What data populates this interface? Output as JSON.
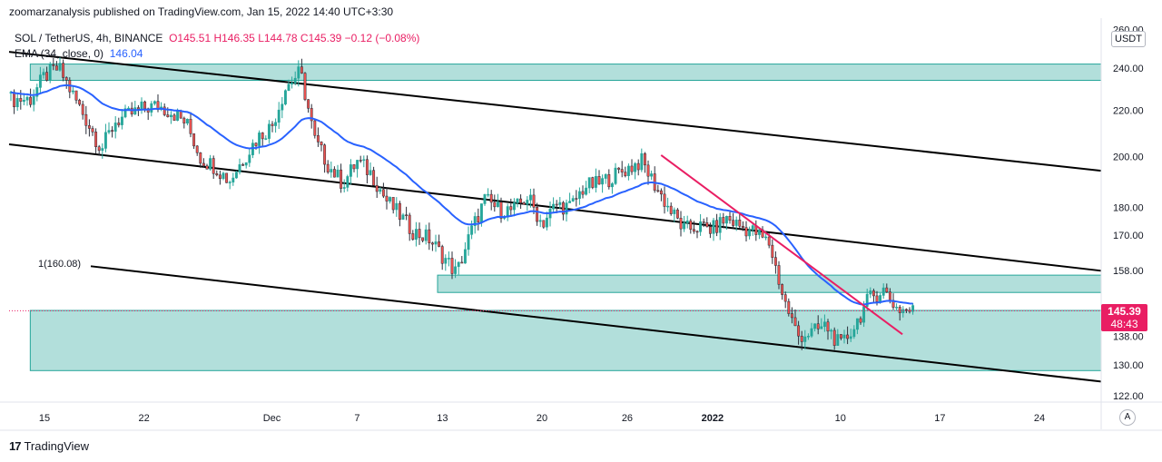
{
  "header": {
    "published": "zoomarzanalysis published on TradingView.com, Jan 15, 2022 14:40 UTC+3:30"
  },
  "legend": {
    "symbol": "SOL / TetherUS, 4h, BINANCE",
    "open": "O145.51",
    "high": "H146.35",
    "low": "L144.78",
    "close": "C145.39",
    "change": "−0.12 (−0.08%)",
    "ema_label": "EMA (34, close, 0)",
    "ema_value": "146.04"
  },
  "price_axis": {
    "currency": "USDT",
    "last_price": "145.39",
    "countdown": "48:43",
    "auto_label": "A"
  },
  "annotations": {
    "fib_label": "1(160.08)"
  },
  "footer": {
    "brand": "TradingView",
    "brand_logo": "17"
  },
  "colors": {
    "up": "#26a69a",
    "down": "#ef5350",
    "candle_body": "#2a2e39",
    "ema": "#2962ff",
    "zone_fill": "#b2dfdb",
    "zone_border": "#26a69a",
    "trendline_pink": "#e91e63",
    "channel": "#000000"
  },
  "chart_data": {
    "type": "candlestick",
    "title": "SOL / TetherUS, 4h, BINANCE",
    "ylim": [
      118,
      262
    ],
    "y_scale": "log",
    "y_ticks": [
      "260.00",
      "240.00",
      "220.00",
      "200.00",
      "180.00",
      "170.00",
      "158.00",
      "138.00",
      "130.00",
      "122.00"
    ],
    "x_ticks": [
      "15",
      "22",
      "Dec",
      "7",
      "13",
      "20",
      "26",
      "2022",
      "10",
      "17",
      "24"
    ],
    "last_price": 145.39,
    "ema_period": 34,
    "ema_last": 146.04,
    "close_path": [
      [
        "2021-11-14",
        225
      ],
      [
        "2021-11-15",
        236
      ],
      [
        "2021-11-16",
        240
      ],
      [
        "2021-11-17",
        227
      ],
      [
        "2021-11-18",
        215
      ],
      [
        "2021-11-19",
        203
      ],
      [
        "2021-11-20",
        215
      ],
      [
        "2021-11-21",
        218
      ],
      [
        "2021-11-22",
        221
      ],
      [
        "2021-11-23",
        222
      ],
      [
        "2021-11-24",
        219
      ],
      [
        "2021-11-25",
        214
      ],
      [
        "2021-11-26",
        199
      ],
      [
        "2021-11-27",
        196
      ],
      [
        "2021-11-28",
        190
      ],
      [
        "2021-11-29",
        199
      ],
      [
        "2021-11-30",
        208
      ],
      [
        "2021-12-01",
        213
      ],
      [
        "2021-12-02",
        231
      ],
      [
        "2021-12-03",
        238
      ],
      [
        "2021-12-04",
        207
      ],
      [
        "2021-12-05",
        196
      ],
      [
        "2021-12-06",
        189
      ],
      [
        "2021-12-07",
        198
      ],
      [
        "2021-12-08",
        193
      ],
      [
        "2021-12-09",
        183
      ],
      [
        "2021-12-10",
        177
      ],
      [
        "2021-12-11",
        171
      ],
      [
        "2021-12-12",
        169
      ],
      [
        "2021-12-13",
        163
      ],
      [
        "2021-12-14",
        157
      ],
      [
        "2021-12-15",
        171
      ],
      [
        "2021-12-16",
        183
      ],
      [
        "2021-12-17",
        179
      ],
      [
        "2021-12-18",
        179
      ],
      [
        "2021-12-19",
        184
      ],
      [
        "2021-12-20",
        174
      ],
      [
        "2021-12-21",
        181
      ],
      [
        "2021-12-22",
        180
      ],
      [
        "2021-12-23",
        188
      ],
      [
        "2021-12-24",
        189
      ],
      [
        "2021-12-25",
        192
      ],
      [
        "2021-12-26",
        195
      ],
      [
        "2021-12-27",
        198
      ],
      [
        "2021-12-28",
        188
      ],
      [
        "2021-12-29",
        179
      ],
      [
        "2021-12-30",
        172
      ],
      [
        "2021-12-31",
        173
      ],
      [
        "2022-01-01",
        172
      ],
      [
        "2022-01-02",
        176
      ],
      [
        "2022-01-03",
        173
      ],
      [
        "2022-01-04",
        171
      ],
      [
        "2022-01-05",
        167
      ],
      [
        "2022-01-06",
        149
      ],
      [
        "2022-01-07",
        138
      ],
      [
        "2022-01-08",
        139
      ],
      [
        "2022-01-09",
        141
      ],
      [
        "2022-01-10",
        135
      ],
      [
        "2022-01-11",
        141
      ],
      [
        "2022-01-12",
        149
      ],
      [
        "2022-01-13",
        152
      ],
      [
        "2022-01-14",
        146
      ],
      [
        "2022-01-15",
        145.39
      ]
    ],
    "zones": [
      {
        "from": "2021-11-14",
        "to": "2022-01-31",
        "low": 234,
        "high": 242
      },
      {
        "from": "2021-12-13",
        "to": "2022-01-31",
        "low": 151,
        "high": 156.5
      },
      {
        "from": "2021-11-14",
        "to": "2022-01-31",
        "low": 128.5,
        "high": 145.5
      }
    ],
    "channel_lines": [
      {
        "from": [
          "2021-11-14",
          247
        ],
        "to": [
          "2022-01-31",
          192.5
        ]
      },
      {
        "from": [
          "2021-11-14",
          204
        ],
        "to": [
          "2022-01-31",
          156.5
        ]
      },
      {
        "from": [
          "2021-11-17",
          160.08
        ],
        "to": [
          "2022-01-31",
          124.5
        ]
      }
    ],
    "trendline": {
      "from": [
        "2021-12-28",
        200.5
      ],
      "to": [
        "2022-01-15",
        138.5
      ]
    }
  }
}
